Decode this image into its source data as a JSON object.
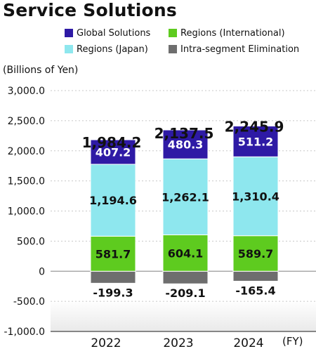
{
  "title": "Service Solutions",
  "legend": [
    {
      "label": "Global Solutions",
      "color": "#2e1aa5"
    },
    {
      "label": "Regions (International)",
      "color": "#5ecb1f"
    },
    {
      "label": "Regions (Japan)",
      "color": "#8ee7ee"
    },
    {
      "label": "Intra-segment Elimination",
      "color": "#6e6e6e"
    }
  ],
  "chart_data": {
    "type": "bar",
    "stacked": true,
    "title": "Service Solutions",
    "ylabel": "(Billions of Yen)",
    "xunit": "(FY)",
    "categories": [
      "2022",
      "2023",
      "2024"
    ],
    "ylim": [
      -1000,
      3000
    ],
    "yticks": [
      3000,
      2500,
      2000,
      1500,
      1000,
      500,
      0,
      -500,
      -1000
    ],
    "ytick_labels": [
      "3,000.0",
      "2,500.0",
      "2,000.0",
      "1,500.0",
      "1,000.0",
      "500.0",
      "0",
      "-500.0",
      "-1,000.0"
    ],
    "grid": true,
    "legend_position": "top-right",
    "series": [
      {
        "name": "Intra-segment Elimination",
        "color": "#6e6e6e",
        "values": [
          -199.3,
          -209.1,
          -165.4
        ],
        "labels": [
          "-199.3",
          "-209.1",
          "-165.4"
        ]
      },
      {
        "name": "Regions (International)",
        "color": "#5ecb1f",
        "values": [
          581.7,
          604.1,
          589.7
        ],
        "labels": [
          "581.7",
          "604.1",
          "589.7"
        ]
      },
      {
        "name": "Regions (Japan)",
        "color": "#8ee7ee",
        "values": [
          1194.6,
          1262.1,
          1310.4
        ],
        "labels": [
          "1,194.6",
          "1,262.1",
          "1,310.4"
        ]
      },
      {
        "name": "Global Solutions",
        "color": "#2e1aa5",
        "values": [
          407.2,
          480.3,
          511.2
        ],
        "labels": [
          "407.2",
          "480.3",
          "511.2"
        ]
      }
    ],
    "totals": [
      1984.2,
      2137.5,
      2245.9
    ],
    "total_labels": [
      "1,984.2",
      "2,137.5",
      "2,245.9"
    ]
  }
}
